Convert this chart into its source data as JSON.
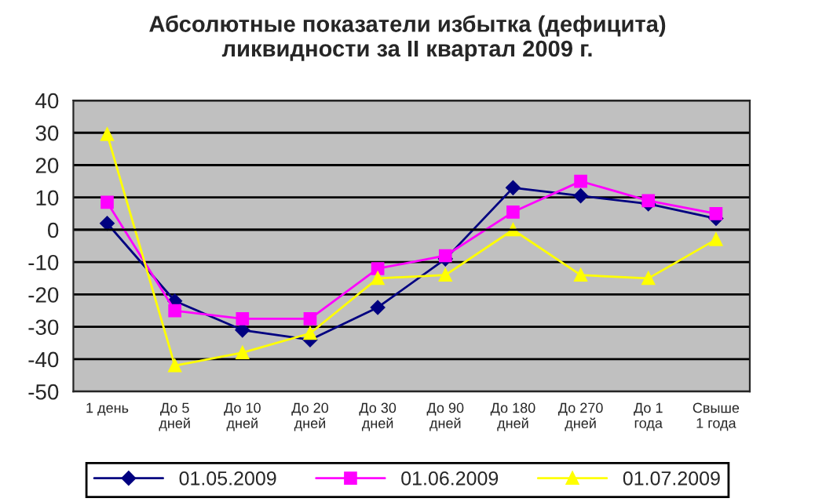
{
  "chart_data": {
    "type": "line",
    "title": "Абсолютные показатели избытка (дефицита)\nликвидности за II квартал 2009 г.",
    "categories": [
      "1 день",
      "До 5\nдней",
      "До 10\nдней",
      "До 20\nдней",
      "До 30\nдней",
      "До 90\nдней",
      "До 180\nдней",
      "До 270\nдней",
      "До 1\nгода",
      "Свыше\n1 года"
    ],
    "series": [
      {
        "name": "01.05.2009",
        "color": "#000080",
        "marker": "diamond",
        "values": [
          2,
          -22,
          -31,
          -34,
          -24,
          -9,
          13,
          10.5,
          8,
          3.5
        ]
      },
      {
        "name": "01.06.2009",
        "color": "#ff00ff",
        "marker": "square",
        "values": [
          8.5,
          -25,
          -27.5,
          -27.5,
          -12,
          -8,
          5.5,
          15,
          9,
          5
        ]
      },
      {
        "name": "01.07.2009",
        "color": "#ffff00",
        "marker": "triangle",
        "values": [
          29.5,
          -42,
          -38,
          -32,
          -15,
          -14,
          0,
          -14,
          -15,
          -3
        ]
      }
    ],
    "ylim": [
      -50,
      40
    ],
    "yticks": [
      -50,
      -40,
      -30,
      -20,
      -10,
      0,
      10,
      20,
      30,
      40
    ],
    "grid": "y",
    "legend": "bottom"
  }
}
